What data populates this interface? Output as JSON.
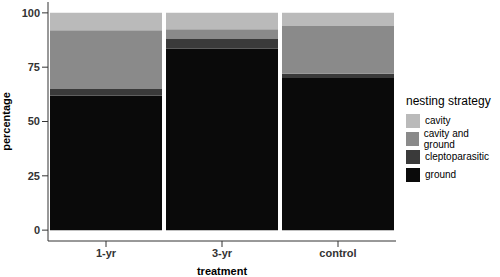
{
  "chart_data": {
    "type": "bar",
    "stacked": true,
    "x_label": "treatment",
    "y_label": "percentage",
    "legend_title": "nesting strategy",
    "legend": "right",
    "grid": false,
    "categories": [
      "1-yr",
      "3-yr",
      "control"
    ],
    "ylim": [
      -5,
      105
    ],
    "yticks": [
      0,
      25,
      50,
      75,
      100
    ],
    "series": [
      {
        "name": "ground",
        "color": "#0a0a0a",
        "values": [
          62,
          83.5,
          70
        ]
      },
      {
        "name": "cleptoparasitic",
        "color": "#3a3a3a",
        "values": [
          3,
          4.5,
          2
        ]
      },
      {
        "name": "cavity and ground",
        "color": "#8a8a8a",
        "values": [
          27,
          4.5,
          22
        ]
      },
      {
        "name": "cavity",
        "color": "#bababa",
        "values": [
          8,
          7.5,
          6
        ]
      }
    ]
  }
}
